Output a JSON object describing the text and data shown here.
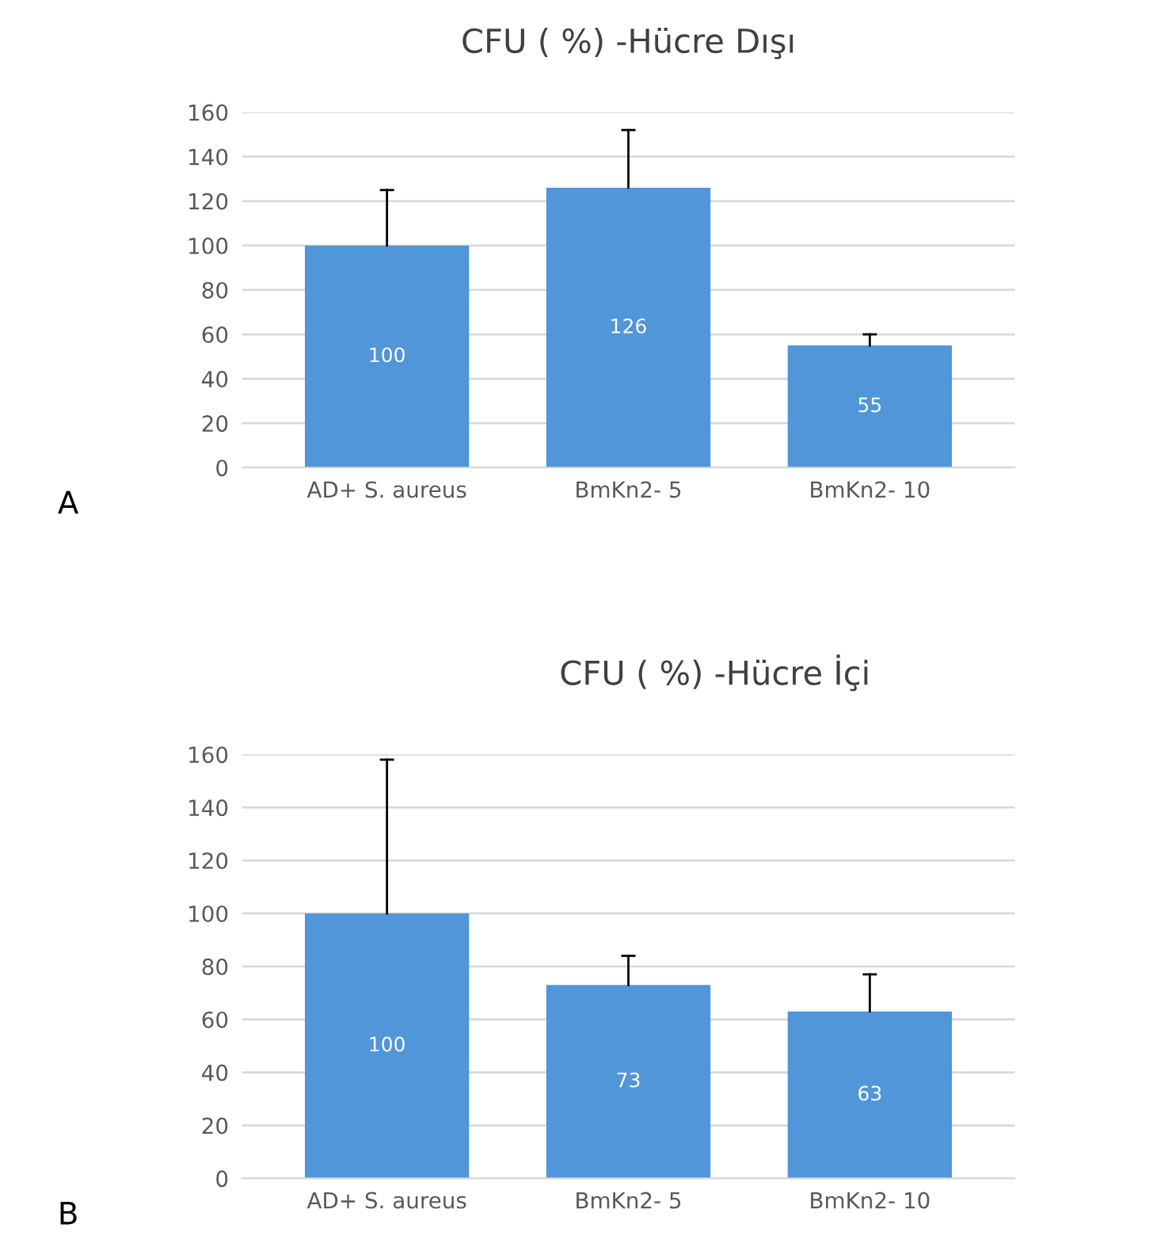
{
  "chart_data": [
    {
      "type": "bar",
      "title": "CFU ( %) -Hücre Dışı",
      "categories": [
        "AD+ S. aureus",
        "BmKn2- 5",
        "BmKn2- 10"
      ],
      "values": [
        100,
        126,
        55
      ],
      "errors": [
        [
          100,
          125
        ],
        [
          126,
          152
        ],
        [
          55,
          60
        ]
      ],
      "color": "#5096d8",
      "ylim": [
        0,
        160
      ],
      "yticks": [
        0,
        20,
        40,
        60,
        80,
        100,
        120,
        140,
        160
      ],
      "grid": "y",
      "data_labels": true,
      "annotations": [
        "A"
      ]
    },
    {
      "type": "bar",
      "title": "CFU ( %) -Hücre İçi",
      "categories": [
        "AD+ S. aureus",
        "BmKn2- 5",
        "BmKn2- 10"
      ],
      "values": [
        100,
        73,
        63
      ],
      "errors": [
        [
          100,
          158
        ],
        [
          73,
          84
        ],
        [
          63,
          77
        ]
      ],
      "color": "#5096d8",
      "ylim": [
        0,
        160
      ],
      "yticks": [
        0,
        20,
        40,
        60,
        80,
        100,
        120,
        140,
        160
      ],
      "grid": "y",
      "data_labels": true,
      "annotations": [
        "B"
      ]
    }
  ]
}
